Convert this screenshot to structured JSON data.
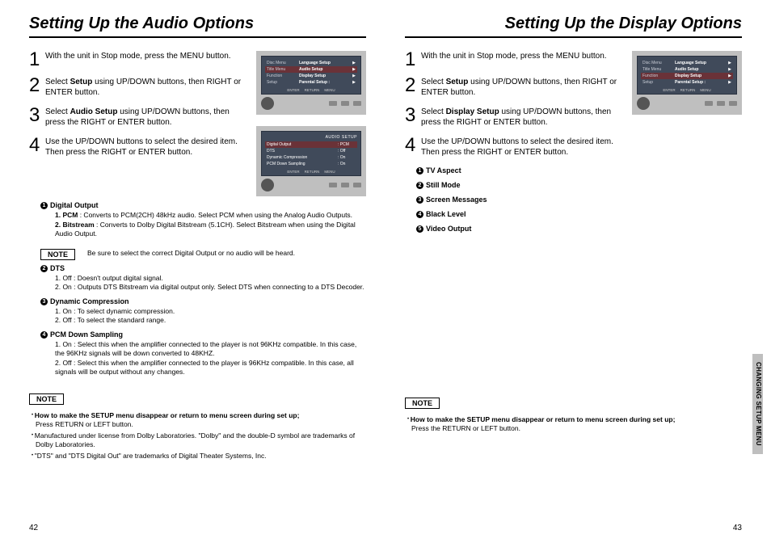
{
  "left": {
    "title": "Setting Up the Audio Options",
    "steps": [
      "With the unit in Stop mode, press the MENU button.",
      "Select <b>Setup</b> using UP/DOWN buttons, then RIGHT or ENTER button.",
      "Select <b>Audio Setup</b> using UP/DOWN buttons, then press the RIGHT or ENTER button.",
      "Use the UP/DOWN buttons to select the desired item. Then press the RIGHT or ENTER button."
    ],
    "menu1": {
      "left_labels": [
        "Disc Menu",
        "Title Menu",
        "Function",
        "Setup"
      ],
      "items": [
        "Language Setup",
        "Audio Setup",
        "Display Setup",
        "Parental Setup :"
      ],
      "highlight_index": 1,
      "footer": [
        "ENTER",
        "RETURN",
        "MENU"
      ]
    },
    "menu2": {
      "header": "AUDIO SETUP",
      "rows": [
        {
          "k": "Digital Output",
          "v": ": PCM",
          "hl": true
        },
        {
          "k": "DTS",
          "v": ": Off"
        },
        {
          "k": "Dynamic Compression",
          "v": ": On"
        },
        {
          "k": "PCM Down Sampling",
          "v": ": On"
        }
      ],
      "footer": [
        "ENTER",
        "RETURN",
        "MENU"
      ]
    },
    "options": [
      {
        "num": "1",
        "title": "Digital Output",
        "subs": [
          "<span class='lbl'>1. PCM</span> : Converts to PCM(2CH) 48kHz audio. Select PCM when using the Analog Audio Outputs.",
          "<span class='lbl'>2. Bitstream</span> : Converts to Dolby Digital Bitstream (5.1CH). Select Bitstream when using the Digital Audio Output."
        ],
        "note": "Be sure to select the correct Digital Output or no audio will be heard."
      },
      {
        "num": "2",
        "title": "DTS",
        "subs": [
          "1. Off : Doesn't output digital signal.",
          "2. On : Outputs DTS Bitstream via digital output only. Select DTS when connecting to a DTS Decoder."
        ]
      },
      {
        "num": "3",
        "title": "Dynamic Compression",
        "subs": [
          "1. On : To select dynamic compression.",
          "2. Off : To select the standard range."
        ]
      },
      {
        "num": "4",
        "title": "PCM Down Sampling",
        "subs": [
          "1. On : Select this when the amplifier connected to the player is not 96KHz compatible. In this case, the 96KHz signals will be down converted to 48KHZ.",
          "2. Off : Select this when the amplifier connected to the player is 96KHz compatible. In this case, all signals will be output without any changes."
        ]
      }
    ],
    "bottom_note_label": "NOTE",
    "bottom_notes": [
      "<span class='bold'>How to make the SETUP menu disappear or return to menu screen during set up;</span><br>Press RETURN or LEFT button.",
      "Manufactured under license from Dolby Laboratories. \"Dolby\" and the double-D symbol are trademarks of Dolby Laboratories.",
      "\"DTS\" and \"DTS Digital Out\" are trademarks of Digital Theater Systems, Inc."
    ],
    "page_number": "42"
  },
  "right": {
    "title": "Setting Up the Display Options",
    "steps": [
      "With the unit in Stop mode, press the MENU button.",
      "Select <b>Setup</b> using UP/DOWN buttons, then RIGHT or ENTER button.",
      "Select <b>Display Setup</b> using UP/DOWN buttons, then press the RIGHT or ENTER button.",
      "Use the UP/DOWN buttons to select the desired item. Then press the RIGHT or ENTER button."
    ],
    "menu1": {
      "left_labels": [
        "Disc Menu",
        "Title Menu",
        "Function",
        "Setup"
      ],
      "items": [
        "Language Setup",
        "Audio Setup",
        "Display Setup",
        "Parental Setup :"
      ],
      "highlight_index": 2,
      "footer": [
        "ENTER",
        "RETURN",
        "MENU"
      ]
    },
    "options_list": [
      {
        "num": "1",
        "title": "TV Aspect"
      },
      {
        "num": "2",
        "title": "Still Mode"
      },
      {
        "num": "3",
        "title": "Screen Messages"
      },
      {
        "num": "4",
        "title": "Black Level"
      },
      {
        "num": "5",
        "title": "Video Output"
      }
    ],
    "bottom_note_label": "NOTE",
    "bottom_notes": [
      "<span class='bold'>How to make the SETUP menu disappear or return to menu screen during set up;</span><br>Press the RETURN or LEFT button."
    ],
    "side_tab": "CHANGING\nSETUP MENU",
    "page_number": "43"
  }
}
